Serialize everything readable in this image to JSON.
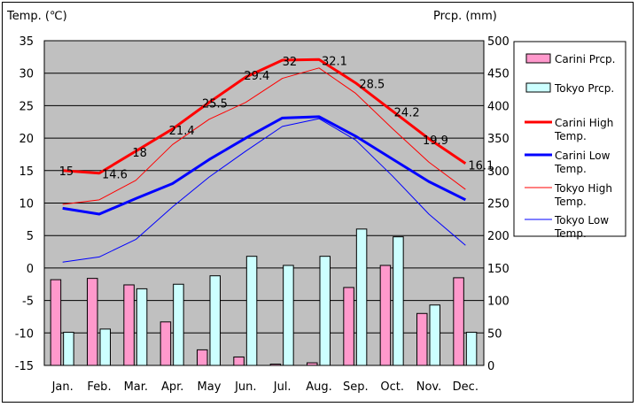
{
  "chart_data": {
    "type": "bar",
    "categories": [
      "Jan.",
      "Feb.",
      "Mar.",
      "Apr.",
      "May",
      "Jun.",
      "Jul.",
      "Aug.",
      "Sep.",
      "Oct.",
      "Nov.",
      "Dec."
    ],
    "y_left_label": "Temp. (℃)",
    "y_right_label": "Prcp. (mm)",
    "y_left_range": [
      -15,
      35
    ],
    "y_right_range": [
      0,
      500
    ],
    "y_left_ticks": [
      "35",
      "30",
      "25",
      "20",
      "15",
      "10",
      "5",
      "0",
      "-5",
      "-10",
      "-15"
    ],
    "y_right_ticks": [
      "500",
      "450",
      "400",
      "350",
      "300",
      "250",
      "200",
      "150",
      "100",
      "50",
      "0"
    ],
    "grid": true,
    "legend_position": "right",
    "bar_series": [
      {
        "name": "Carini Prcp.",
        "color": "#ff99cc",
        "values": [
          132,
          134,
          124,
          67,
          24,
          13,
          2,
          4,
          120,
          154,
          80,
          135
        ]
      },
      {
        "name": "Tokyo Prcp.",
        "color": "#ccffff",
        "values": [
          51,
          56,
          118,
          125,
          138,
          168,
          154,
          168,
          210,
          198,
          93,
          51
        ]
      }
    ],
    "line_series": [
      {
        "name": "Carini High Temp.",
        "color": "#ff0000",
        "width": "thick",
        "values": [
          15,
          14.6,
          18,
          21.4,
          25.5,
          29.4,
          32,
          32.1,
          28.5,
          24.2,
          19.9,
          16.1
        ],
        "labels": [
          "15",
          "14.6",
          "18",
          "21.4",
          "25.5",
          "29.4",
          "32",
          "32.1",
          "28.5",
          "24.2",
          "19.9",
          "16.1"
        ]
      },
      {
        "name": "Carini Low Temp.",
        "color": "#0000ff",
        "width": "thick",
        "values": [
          9.2,
          8.3,
          10.7,
          13,
          16.7,
          20,
          23.1,
          23.3,
          20.3,
          16.8,
          13.3,
          10.5
        ]
      },
      {
        "name": "Tokyo High Temp.",
        "color": "#ff0000",
        "width": "thin",
        "values": [
          9.8,
          10.5,
          13.5,
          19,
          22.9,
          25.5,
          29.2,
          30.8,
          26.9,
          21.5,
          16.3,
          12.1
        ]
      },
      {
        "name": "Tokyo Low Temp.",
        "color": "#0000ff",
        "width": "thin",
        "values": [
          0.9,
          1.7,
          4.4,
          9.4,
          14,
          18,
          21.8,
          23,
          19.7,
          14.2,
          8.3,
          3.5
        ]
      }
    ],
    "legend": [
      {
        "label": "Carini Prcp.",
        "kind": "bar",
        "color": "#ff99cc"
      },
      {
        "label": "Tokyo Prcp.",
        "kind": "bar",
        "color": "#ccffff"
      },
      {
        "label": "Carini High Temp.",
        "kind": "thick-line",
        "color": "#ff0000"
      },
      {
        "label": "Carini Low Temp.",
        "kind": "thick-line",
        "color": "#0000ff"
      },
      {
        "label": "Tokyo High Temp.",
        "kind": "thin-line",
        "color": "#ff0000"
      },
      {
        "label": "Tokyo Low Temp.",
        "kind": "thin-line",
        "color": "#0000ff"
      }
    ],
    "plot_background": "#c0c0c0"
  }
}
